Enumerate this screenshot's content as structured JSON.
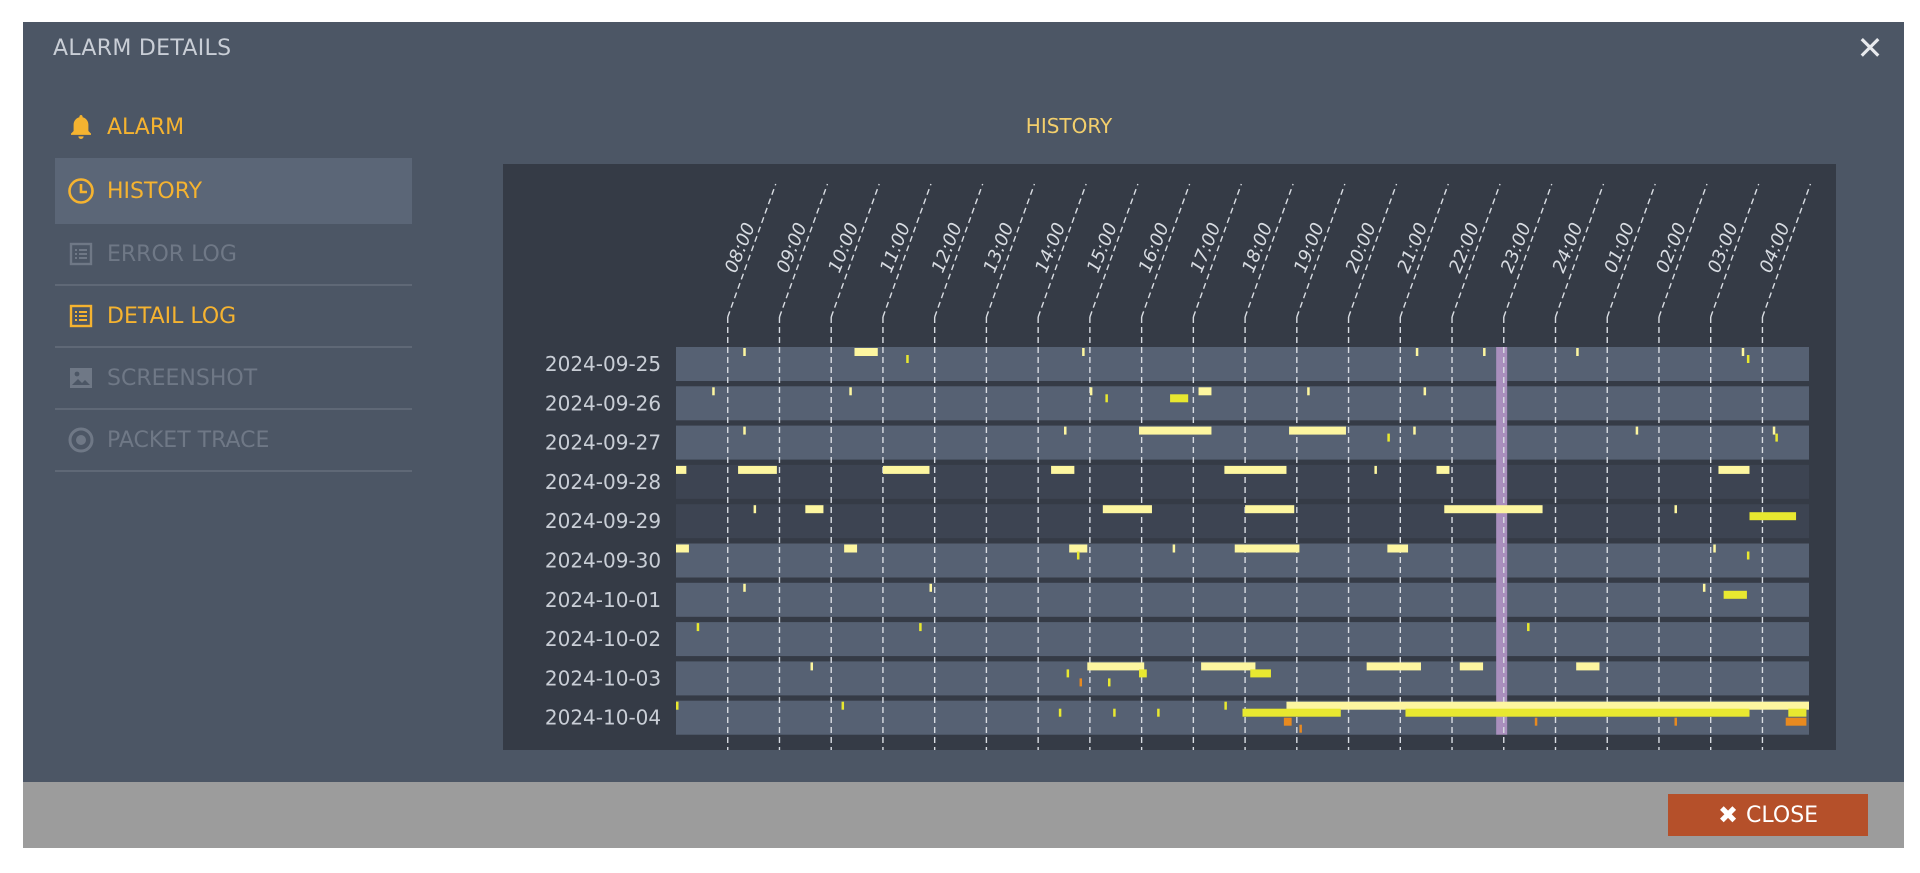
{
  "dialog": {
    "title": "ALARM DETAILS",
    "close_icon": "close-icon"
  },
  "sidebar": {
    "items": [
      {
        "label": "ALARM",
        "icon": "bell-icon",
        "state": "enabled"
      },
      {
        "label": "HISTORY",
        "icon": "clock-icon",
        "state": "active"
      },
      {
        "label": "ERROR LOG",
        "icon": "list-icon",
        "state": "disabled"
      },
      {
        "label": "DETAIL LOG",
        "icon": "list-icon",
        "state": "enabled"
      },
      {
        "label": "SCREENSHOT",
        "icon": "image-icon",
        "state": "disabled"
      },
      {
        "label": "PACKET TRACE",
        "icon": "target-icon",
        "state": "disabled"
      }
    ]
  },
  "history": {
    "title": "HISTORY"
  },
  "colors": {
    "accent": "#f5b330",
    "event_light": "#fdf6a0",
    "event_yellow": "#e8e830",
    "event_orange": "#e88a20",
    "highlight_column": "#a98fbd",
    "close_button": "#b5502a"
  },
  "chart_data": {
    "type": "timeline",
    "time_labels": [
      "08:00",
      "09:00",
      "10:00",
      "11:00",
      "12:00",
      "13:00",
      "14:00",
      "15:00",
      "16:00",
      "17:00",
      "18:00",
      "19:00",
      "20:00",
      "21:00",
      "22:00",
      "23:00",
      "24:00",
      "01:00",
      "02:00",
      "03:00",
      "04:00"
    ],
    "start_hour": 7.0,
    "end_hour": 28.9,
    "highlight_hour": 22.95,
    "rows": [
      {
        "date": "2024-09-25",
        "shade": "light",
        "events": [
          {
            "s": 8.3,
            "e": 8.35,
            "c": "l",
            "lane": "top"
          },
          {
            "s": 10.45,
            "e": 10.9,
            "c": "l",
            "lane": "top"
          },
          {
            "s": 11.45,
            "e": 11.5,
            "c": "y",
            "lane": "mid"
          },
          {
            "s": 14.85,
            "e": 14.9,
            "c": "l",
            "lane": "top"
          },
          {
            "s": 21.3,
            "e": 21.35,
            "c": "l",
            "lane": "top"
          },
          {
            "s": 22.6,
            "e": 22.65,
            "c": "l",
            "lane": "top"
          },
          {
            "s": 24.4,
            "e": 24.45,
            "c": "l",
            "lane": "top"
          },
          {
            "s": 27.6,
            "e": 27.65,
            "c": "l",
            "lane": "top"
          },
          {
            "s": 27.7,
            "e": 27.75,
            "c": "y",
            "lane": "mid"
          }
        ]
      },
      {
        "date": "2024-09-26",
        "shade": "light",
        "events": [
          {
            "s": 7.7,
            "e": 7.75,
            "c": "l",
            "lane": "top"
          },
          {
            "s": 10.35,
            "e": 10.4,
            "c": "l",
            "lane": "top"
          },
          {
            "s": 15.0,
            "e": 15.05,
            "c": "l",
            "lane": "top"
          },
          {
            "s": 15.3,
            "e": 15.35,
            "c": "y",
            "lane": "mid"
          },
          {
            "s": 16.55,
            "e": 16.9,
            "c": "y",
            "lane": "mid"
          },
          {
            "s": 17.1,
            "e": 17.35,
            "c": "l",
            "lane": "top"
          },
          {
            "s": 19.2,
            "e": 19.25,
            "c": "l",
            "lane": "top"
          },
          {
            "s": 21.45,
            "e": 21.5,
            "c": "l",
            "lane": "top"
          }
        ]
      },
      {
        "date": "2024-09-27",
        "shade": "light",
        "events": [
          {
            "s": 8.3,
            "e": 8.35,
            "c": "l",
            "lane": "top"
          },
          {
            "s": 14.5,
            "e": 14.55,
            "c": "l",
            "lane": "top"
          },
          {
            "s": 15.95,
            "e": 17.35,
            "c": "l",
            "lane": "top"
          },
          {
            "s": 18.85,
            "e": 19.95,
            "c": "l",
            "lane": "top"
          },
          {
            "s": 20.75,
            "e": 20.8,
            "c": "y",
            "lane": "mid"
          },
          {
            "s": 21.25,
            "e": 21.3,
            "c": "l",
            "lane": "top"
          },
          {
            "s": 25.55,
            "e": 25.6,
            "c": "l",
            "lane": "top"
          },
          {
            "s": 28.2,
            "e": 28.25,
            "c": "l",
            "lane": "top"
          },
          {
            "s": 28.25,
            "e": 28.3,
            "c": "y",
            "lane": "mid"
          }
        ]
      },
      {
        "date": "2024-09-28",
        "shade": "dark",
        "events": [
          {
            "s": 7.0,
            "e": 7.2,
            "c": "l",
            "lane": "top"
          },
          {
            "s": 8.2,
            "e": 8.95,
            "c": "l",
            "lane": "top"
          },
          {
            "s": 11.0,
            "e": 11.9,
            "c": "l",
            "lane": "top"
          },
          {
            "s": 14.25,
            "e": 14.7,
            "c": "l",
            "lane": "top"
          },
          {
            "s": 17.6,
            "e": 18.8,
            "c": "l",
            "lane": "top"
          },
          {
            "s": 20.5,
            "e": 20.55,
            "c": "l",
            "lane": "top"
          },
          {
            "s": 21.7,
            "e": 21.95,
            "c": "l",
            "lane": "top"
          },
          {
            "s": 27.15,
            "e": 27.75,
            "c": "l",
            "lane": "top"
          }
        ]
      },
      {
        "date": "2024-09-29",
        "shade": "dark",
        "events": [
          {
            "s": 8.5,
            "e": 8.55,
            "c": "l",
            "lane": "top"
          },
          {
            "s": 9.5,
            "e": 9.85,
            "c": "l",
            "lane": "top"
          },
          {
            "s": 15.25,
            "e": 16.2,
            "c": "l",
            "lane": "top"
          },
          {
            "s": 18.0,
            "e": 18.95,
            "c": "l",
            "lane": "top"
          },
          {
            "s": 21.85,
            "e": 23.75,
            "c": "l",
            "lane": "top"
          },
          {
            "s": 26.3,
            "e": 26.35,
            "c": "l",
            "lane": "top"
          },
          {
            "s": 27.75,
            "e": 28.65,
            "c": "y",
            "lane": "mid"
          }
        ]
      },
      {
        "date": "2024-09-30",
        "shade": "light",
        "events": [
          {
            "s": 7.0,
            "e": 7.25,
            "c": "l",
            "lane": "top"
          },
          {
            "s": 10.25,
            "e": 10.5,
            "c": "l",
            "lane": "top"
          },
          {
            "s": 14.6,
            "e": 14.95,
            "c": "l",
            "lane": "top"
          },
          {
            "s": 14.75,
            "e": 14.8,
            "c": "y",
            "lane": "mid"
          },
          {
            "s": 16.6,
            "e": 16.65,
            "c": "l",
            "lane": "top"
          },
          {
            "s": 17.8,
            "e": 19.05,
            "c": "l",
            "lane": "top"
          },
          {
            "s": 20.75,
            "e": 21.15,
            "c": "l",
            "lane": "top"
          },
          {
            "s": 27.05,
            "e": 27.1,
            "c": "l",
            "lane": "top"
          },
          {
            "s": 27.7,
            "e": 27.75,
            "c": "y",
            "lane": "mid"
          }
        ]
      },
      {
        "date": "2024-10-01",
        "shade": "light",
        "events": [
          {
            "s": 8.3,
            "e": 8.35,
            "c": "l",
            "lane": "top"
          },
          {
            "s": 11.9,
            "e": 11.95,
            "c": "l",
            "lane": "top"
          },
          {
            "s": 26.85,
            "e": 26.9,
            "c": "l",
            "lane": "top"
          },
          {
            "s": 27.25,
            "e": 27.7,
            "c": "y",
            "lane": "mid"
          }
        ]
      },
      {
        "date": "2024-10-02",
        "shade": "light",
        "events": [
          {
            "s": 7.4,
            "e": 7.45,
            "c": "y",
            "lane": "top"
          },
          {
            "s": 11.7,
            "e": 11.75,
            "c": "y",
            "lane": "top"
          },
          {
            "s": 23.45,
            "e": 23.5,
            "c": "y",
            "lane": "top"
          }
        ]
      },
      {
        "date": "2024-10-03",
        "shade": "light",
        "events": [
          {
            "s": 9.6,
            "e": 9.65,
            "c": "l",
            "lane": "top"
          },
          {
            "s": 14.55,
            "e": 14.6,
            "c": "y",
            "lane": "mid"
          },
          {
            "s": 14.95,
            "e": 16.05,
            "c": "l",
            "lane": "top"
          },
          {
            "s": 15.95,
            "e": 16.1,
            "c": "y",
            "lane": "mid"
          },
          {
            "s": 15.35,
            "e": 15.4,
            "c": "y",
            "lane": "bot"
          },
          {
            "s": 14.8,
            "e": 14.85,
            "c": "o",
            "lane": "bot"
          },
          {
            "s": 17.15,
            "e": 18.2,
            "c": "l",
            "lane": "top"
          },
          {
            "s": 18.1,
            "e": 18.5,
            "c": "y",
            "lane": "mid"
          },
          {
            "s": 20.35,
            "e": 21.4,
            "c": "l",
            "lane": "top"
          },
          {
            "s": 22.15,
            "e": 22.6,
            "c": "l",
            "lane": "top"
          },
          {
            "s": 24.4,
            "e": 24.85,
            "c": "l",
            "lane": "top"
          }
        ]
      },
      {
        "date": "2024-10-04",
        "shade": "light",
        "events": [
          {
            "s": 7.0,
            "e": 7.05,
            "c": "y",
            "lane": "top"
          },
          {
            "s": 10.2,
            "e": 10.25,
            "c": "y",
            "lane": "top"
          },
          {
            "s": 14.4,
            "e": 14.45,
            "c": "y",
            "lane": "mid"
          },
          {
            "s": 15.45,
            "e": 15.5,
            "c": "y",
            "lane": "mid"
          },
          {
            "s": 16.3,
            "e": 16.35,
            "c": "y",
            "lane": "mid"
          },
          {
            "s": 17.6,
            "e": 17.65,
            "c": "y",
            "lane": "top"
          },
          {
            "s": 18.8,
            "e": 28.9,
            "c": "l",
            "lane": "top"
          },
          {
            "s": 17.95,
            "e": 19.85,
            "c": "y",
            "lane": "mid"
          },
          {
            "s": 18.75,
            "e": 18.9,
            "c": "o",
            "lane": "bot"
          },
          {
            "s": 19.05,
            "e": 19.1,
            "c": "o",
            "lane": "bot2"
          },
          {
            "s": 21.1,
            "e": 27.75,
            "c": "y",
            "lane": "mid"
          },
          {
            "s": 23.6,
            "e": 23.65,
            "c": "o",
            "lane": "bot"
          },
          {
            "s": 26.3,
            "e": 26.35,
            "c": "o",
            "lane": "bot"
          },
          {
            "s": 28.5,
            "e": 28.85,
            "c": "y",
            "lane": "mid"
          },
          {
            "s": 28.45,
            "e": 28.85,
            "c": "o",
            "lane": "bot"
          }
        ]
      }
    ]
  },
  "footer": {
    "close_label": "CLOSE"
  }
}
